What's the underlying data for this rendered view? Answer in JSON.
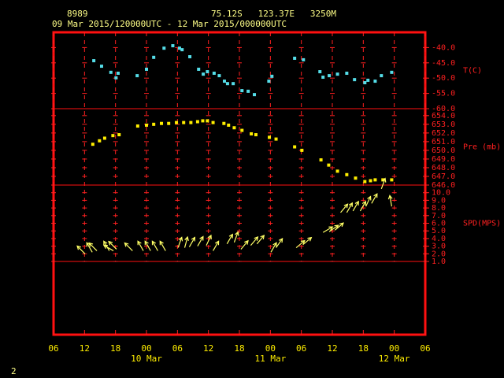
{
  "header": {
    "station": "8989",
    "location": "75.12S   123.37E   3250M",
    "period": "09 Mar 2015/120000UTC - 12 Mar 2015/000000UTC"
  },
  "x_axis": {
    "xlim": [
      0,
      72
    ],
    "xticks": [
      {
        "value": 0,
        "label": "06"
      },
      {
        "value": 6,
        "label": "12"
      },
      {
        "value": 12,
        "label": "18"
      },
      {
        "value": 18,
        "label": "00"
      },
      {
        "value": 24,
        "label": "06"
      },
      {
        "value": 30,
        "label": "12"
      },
      {
        "value": 36,
        "label": "18"
      },
      {
        "value": 42,
        "label": "00"
      },
      {
        "value": 48,
        "label": "06"
      },
      {
        "value": 54,
        "label": "12"
      },
      {
        "value": 60,
        "label": "18"
      },
      {
        "value": 66,
        "label": "00"
      },
      {
        "value": 72,
        "label": "06"
      }
    ],
    "date_labels": [
      {
        "value": 18,
        "label": "10 Mar"
      },
      {
        "value": 42,
        "label": "11 Mar"
      },
      {
        "value": 66,
        "label": "12 Mar"
      }
    ]
  },
  "chart_data": [
    {
      "type": "scatter",
      "y_label": "T(C)",
      "color": "#55dde8",
      "x": [
        7.8,
        9.3,
        11.1,
        12.1,
        12.5,
        16.2,
        18.0,
        19.4,
        21.4,
        23.1,
        24.4,
        24.9,
        26.4,
        28.1,
        29.0,
        29.8,
        31.1,
        32.1,
        33.1,
        33.7,
        34.8,
        36.5,
        37.7,
        38.9,
        41.7,
        42.3,
        46.7,
        48.4,
        51.6,
        52.2,
        53.4,
        55.0,
        56.8,
        58.3,
        60.3,
        60.9,
        62.3,
        63.5,
        65.5
      ],
      "values": [
        -44.3,
        -46.1,
        -48.1,
        -49.9,
        -48.4,
        -49.2,
        -47.1,
        -43.2,
        -40.2,
        -39.4,
        -40.2,
        -40.7,
        -43.0,
        -47.1,
        -48.7,
        -47.9,
        -48.4,
        -49.2,
        -51.0,
        -51.8,
        -51.8,
        -54.1,
        -54.3,
        -55.4,
        -51.0,
        -49.4,
        -43.5,
        -44.0,
        -47.9,
        -49.7,
        -49.2,
        -48.7,
        -48.4,
        -50.5,
        -51.5,
        -50.7,
        -51.0,
        -49.2,
        -48.1
      ],
      "ylim": [
        -60,
        -35
      ],
      "yticks": [
        {
          "value": -40,
          "label": "-40.0"
        },
        {
          "value": -45,
          "label": "-45.0"
        },
        {
          "value": -50,
          "label": "-50.0"
        },
        {
          "value": -55,
          "label": "-55.0"
        },
        {
          "value": -60,
          "label": "-60.0"
        }
      ]
    },
    {
      "type": "scatter",
      "y_label": "Pre (mb)",
      "color": "#ffee00",
      "x": [
        7.6,
        8.9,
        9.9,
        11.5,
        12.7,
        16.3,
        18.0,
        19.4,
        20.9,
        22.3,
        23.8,
        25.2,
        26.6,
        27.9,
        28.9,
        29.8,
        30.9,
        33.0,
        33.9,
        35.0,
        36.5,
        38.3,
        39.2,
        41.8,
        43.1,
        46.7,
        48.1,
        51.8,
        53.3,
        55.0,
        56.8,
        58.5,
        60.3,
        61.4,
        62.3,
        63.8,
        65.5
      ],
      "values": [
        650.7,
        651.1,
        651.4,
        651.7,
        651.8,
        652.8,
        652.9,
        653.0,
        653.1,
        653.1,
        653.2,
        653.2,
        653.2,
        653.3,
        653.4,
        653.4,
        653.2,
        653.1,
        652.9,
        652.6,
        652.3,
        651.9,
        651.8,
        651.5,
        651.3,
        650.4,
        650.0,
        648.9,
        648.3,
        647.6,
        647.2,
        646.8,
        646.4,
        646.5,
        646.6,
        646.6,
        646.6
      ],
      "ylim": [
        646,
        654.8
      ],
      "yticks": [
        {
          "value": 654,
          "label": "654.0"
        },
        {
          "value": 653,
          "label": "653.0"
        },
        {
          "value": 652,
          "label": "652.0"
        },
        {
          "value": 651,
          "label": "651.0"
        },
        {
          "value": 650,
          "label": "650.0"
        },
        {
          "value": 649,
          "label": "649.0"
        },
        {
          "value": 648,
          "label": "648.0"
        },
        {
          "value": 647,
          "label": "647.0"
        },
        {
          "value": 646,
          "label": "646.0"
        }
      ]
    },
    {
      "type": "vector",
      "y_label": "SPD(MPS)",
      "color": "#ffff66",
      "x": [
        6.1,
        7.5,
        8.4,
        10.8,
        11.6,
        12.2,
        15.3,
        17.4,
        18.8,
        20.2,
        21.7,
        24.1,
        25.4,
        26.3,
        27.9,
        29.6,
        30.9,
        33.6,
        35.0,
        36.3,
        38.2,
        39.4,
        42.1,
        43.1,
        47.0,
        48.3,
        52.2,
        53.4,
        54.5,
        55.6,
        56.8,
        58.0,
        59.4,
        60.5,
        61.6,
        63.5,
        65.5
      ],
      "values": [
        2.0,
        2.2,
        2.4,
        2.4,
        2.4,
        2.6,
        2.4,
        2.4,
        2.4,
        2.4,
        2.4,
        2.8,
        2.8,
        2.9,
        3.0,
        3.1,
        2.4,
        3.3,
        3.5,
        2.6,
        3.1,
        3.3,
        2.2,
        2.8,
        2.8,
        3.2,
        4.8,
        4.9,
        5.1,
        7.4,
        7.4,
        7.6,
        7.6,
        8.2,
        8.6,
        10.5,
        8.2
      ],
      "directions": [
        315,
        330,
        315,
        330,
        300,
        315,
        315,
        330,
        330,
        330,
        330,
        20,
        15,
        30,
        30,
        25,
        30,
        30,
        20,
        40,
        40,
        40,
        30,
        35,
        50,
        50,
        60,
        55,
        50,
        40,
        30,
        30,
        30,
        25,
        30,
        20,
        350
      ],
      "ylim": [
        1,
        11
      ],
      "yticks": [
        {
          "value": 10,
          "label": "10.0"
        },
        {
          "value": 9,
          "label": "9.0"
        },
        {
          "value": 8,
          "label": "8.0"
        },
        {
          "value": 7,
          "label": "7.0"
        },
        {
          "value": 6,
          "label": "6.0"
        },
        {
          "value": 5,
          "label": "5.0"
        },
        {
          "value": 4,
          "label": "4.0"
        },
        {
          "value": 3,
          "label": "3.0"
        },
        {
          "value": 2,
          "label": "2.0"
        },
        {
          "value": 1,
          "label": "1.0"
        }
      ]
    }
  ],
  "page_number": "2"
}
